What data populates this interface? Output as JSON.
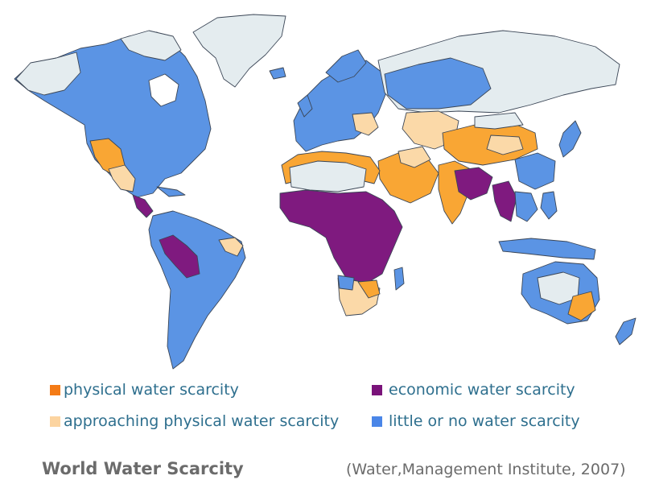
{
  "title": "World Water Scarcity",
  "source": "(Water,Management Institute, 2007)",
  "legend": [
    {
      "key": "physical",
      "label": "physical water scarcity",
      "color": "#f47b16"
    },
    {
      "key": "economic",
      "label": "economic water scarcity",
      "color": "#7a137a"
    },
    {
      "key": "approaching",
      "label": "approaching physical water scarcity",
      "color": "#fcd4a0"
    },
    {
      "key": "little",
      "label": "little or no water scarcity",
      "color": "#4a86e8"
    }
  ],
  "colors": {
    "ocean": "#ffffff",
    "little": "#5b94e4",
    "physical": "#f9a634",
    "approaching": "#fbd9a8",
    "economic": "#7f1a7f",
    "no_data": "#e4ecef",
    "border": "#3b4656"
  }
}
